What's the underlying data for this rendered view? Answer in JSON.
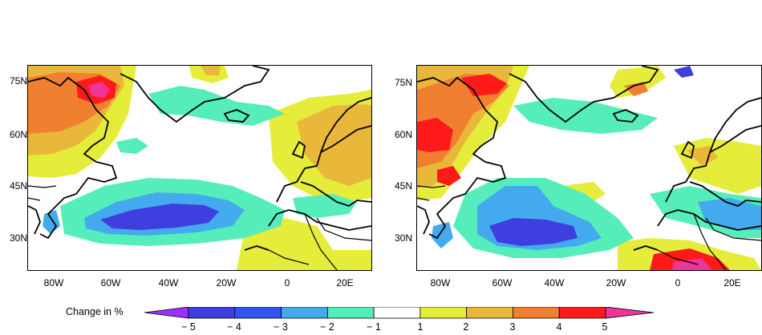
{
  "panels": [
    {
      "lat_labels": [
        "75N",
        "60N",
        "45N",
        "30N"
      ],
      "lon_labels": [
        "80W",
        "60W",
        "40W",
        "20W",
        "0",
        "20E"
      ]
    },
    {
      "lat_labels": [
        "75N",
        "60N",
        "45N",
        "30N"
      ],
      "lon_labels": [
        "80W",
        "60W",
        "40W",
        "20W",
        "0",
        "20E"
      ]
    }
  ],
  "colorbar": {
    "title": "Change in %",
    "tick_labels": [
      "− 5",
      "− 4",
      "− 3",
      "− 2",
      "− 1",
      "1",
      "2",
      "3",
      "4",
      "5"
    ],
    "colors": [
      "#9b30ff",
      "#3f3fe0",
      "#3355ee",
      "#44aaee",
      "#55eebb",
      "#ffffff",
      "#e6ec3a",
      "#e9b83a",
      "#f08030",
      "#ff1a1a",
      "#ee3399"
    ]
  },
  "colors": {
    "strong_neg": "#3f3fe0",
    "mod_neg": "#44aaee",
    "weak_neg": "#55eebb",
    "weak_pos": "#e6ec3a",
    "mod_pos": "#e9b83a",
    "strong_pos": "#f08030",
    "very_strong_pos": "#ff1a1a",
    "extreme_pos": "#ee3399"
  }
}
